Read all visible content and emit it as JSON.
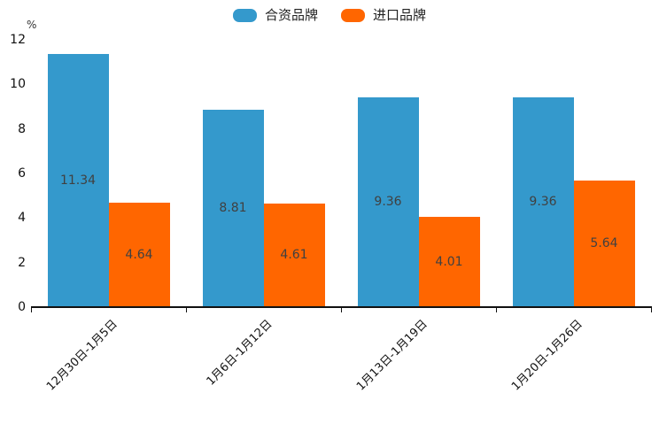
{
  "chart_data": {
    "type": "bar",
    "title": "",
    "unit_label": "%",
    "categories": [
      "12月30日-1月5日",
      "1月6日-1月12日",
      "1月13日-1月19日",
      "1月20日-1月26日"
    ],
    "series": [
      {
        "name": "合资品牌",
        "color": "#3499cc",
        "values": [
          11.34,
          8.81,
          9.36,
          9.36
        ]
      },
      {
        "name": "进口品牌",
        "color": "#ff6600",
        "values": [
          4.64,
          4.61,
          4.01,
          5.64
        ]
      }
    ],
    "ylim": [
      0,
      12
    ],
    "yticks": [
      0,
      2,
      4,
      6,
      8,
      10,
      12
    ],
    "grid": false,
    "legend_position": "top-center",
    "value_labels": "inside-center",
    "value_label_color": "#404040",
    "axis_color": "#111111",
    "x_label_rotation_deg": 45
  }
}
